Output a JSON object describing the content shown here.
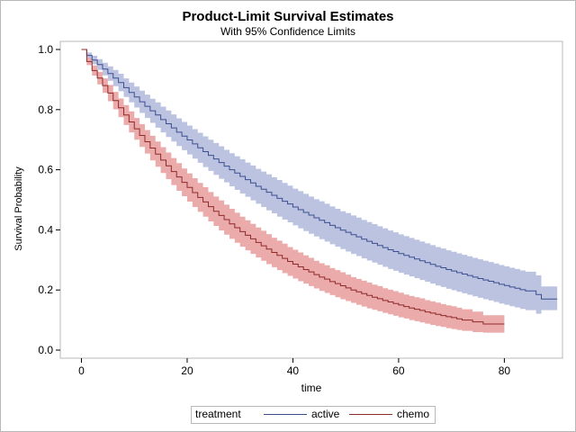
{
  "chart_data": {
    "type": "line",
    "title": "Product-Limit Survival Estimates",
    "subtitle": "With 95% Confidence Limits",
    "xlabel": "time",
    "ylabel": "Survival Probability",
    "xlim": [
      -4,
      91
    ],
    "ylim": [
      0,
      1.0
    ],
    "xticks": [
      0,
      20,
      40,
      60,
      80
    ],
    "yticks": [
      "0.0",
      "0.2",
      "0.4",
      "0.6",
      "0.8",
      "1.0"
    ],
    "legend_title": "treatment",
    "legend_position": "bottom",
    "series": [
      {
        "name": "active",
        "color": "#3d4e8f",
        "band_color": "#b7c0de",
        "x": [
          0,
          1,
          2,
          3,
          4,
          5,
          6,
          7,
          8,
          9,
          10,
          11,
          12,
          13,
          14,
          15,
          16,
          17,
          18,
          19,
          20,
          21,
          22,
          23,
          24,
          25,
          26,
          27,
          28,
          29,
          30,
          31,
          32,
          33,
          34,
          35,
          36,
          37,
          38,
          39,
          40,
          41,
          42,
          43,
          44,
          45,
          46,
          47,
          48,
          49,
          50,
          51,
          52,
          53,
          54,
          55,
          56,
          57,
          58,
          59,
          60,
          61,
          62,
          63,
          64,
          65,
          66,
          67,
          68,
          69,
          70,
          71,
          72,
          73,
          74,
          75,
          76,
          77,
          78,
          79,
          80,
          81,
          82,
          83,
          84,
          86,
          87,
          90
        ],
        "y": [
          1.0,
          0.98,
          0.965,
          0.95,
          0.935,
          0.92,
          0.905,
          0.89,
          0.873,
          0.857,
          0.842,
          0.826,
          0.811,
          0.796,
          0.782,
          0.767,
          0.753,
          0.739,
          0.725,
          0.712,
          0.699,
          0.686,
          0.673,
          0.66,
          0.648,
          0.636,
          0.624,
          0.612,
          0.6,
          0.589,
          0.578,
          0.567,
          0.556,
          0.545,
          0.535,
          0.525,
          0.515,
          0.505,
          0.495,
          0.486,
          0.476,
          0.467,
          0.458,
          0.449,
          0.44,
          0.432,
          0.424,
          0.415,
          0.407,
          0.399,
          0.392,
          0.384,
          0.377,
          0.369,
          0.362,
          0.355,
          0.348,
          0.341,
          0.334,
          0.328,
          0.321,
          0.315,
          0.309,
          0.303,
          0.297,
          0.291,
          0.285,
          0.279,
          0.274,
          0.268,
          0.263,
          0.258,
          0.253,
          0.248,
          0.243,
          0.238,
          0.233,
          0.229,
          0.224,
          0.219,
          0.215,
          0.21,
          0.206,
          0.201,
          0.197,
          0.185,
          0.17,
          0.17
        ],
        "lower": [
          1.0,
          0.97,
          0.951,
          0.932,
          0.914,
          0.896,
          0.878,
          0.861,
          0.842,
          0.824,
          0.807,
          0.789,
          0.772,
          0.756,
          0.74,
          0.724,
          0.709,
          0.694,
          0.679,
          0.665,
          0.651,
          0.637,
          0.623,
          0.609,
          0.596,
          0.583,
          0.57,
          0.558,
          0.545,
          0.533,
          0.521,
          0.51,
          0.498,
          0.487,
          0.476,
          0.465,
          0.455,
          0.444,
          0.434,
          0.425,
          0.415,
          0.405,
          0.396,
          0.387,
          0.378,
          0.369,
          0.361,
          0.352,
          0.344,
          0.336,
          0.328,
          0.32,
          0.313,
          0.305,
          0.298,
          0.291,
          0.284,
          0.277,
          0.27,
          0.264,
          0.257,
          0.251,
          0.245,
          0.239,
          0.233,
          0.227,
          0.221,
          0.215,
          0.21,
          0.204,
          0.199,
          0.194,
          0.189,
          0.184,
          0.179,
          0.174,
          0.169,
          0.165,
          0.16,
          0.155,
          0.151,
          0.146,
          0.142,
          0.137,
          0.133,
          0.121,
          0.133,
          0.133
        ],
        "upper": [
          1.0,
          0.99,
          0.979,
          0.968,
          0.956,
          0.944,
          0.932,
          0.919,
          0.904,
          0.89,
          0.877,
          0.863,
          0.85,
          0.836,
          0.824,
          0.81,
          0.797,
          0.784,
          0.771,
          0.759,
          0.747,
          0.735,
          0.723,
          0.711,
          0.7,
          0.689,
          0.678,
          0.666,
          0.655,
          0.645,
          0.635,
          0.624,
          0.614,
          0.603,
          0.594,
          0.585,
          0.575,
          0.566,
          0.556,
          0.547,
          0.537,
          0.529,
          0.52,
          0.511,
          0.502,
          0.495,
          0.487,
          0.478,
          0.47,
          0.462,
          0.456,
          0.448,
          0.441,
          0.433,
          0.426,
          0.419,
          0.412,
          0.405,
          0.398,
          0.392,
          0.385,
          0.379,
          0.373,
          0.367,
          0.361,
          0.355,
          0.349,
          0.343,
          0.338,
          0.332,
          0.327,
          0.322,
          0.317,
          0.312,
          0.307,
          0.302,
          0.297,
          0.293,
          0.288,
          0.283,
          0.279,
          0.274,
          0.27,
          0.265,
          0.261,
          0.249,
          0.212,
          0.212
        ]
      },
      {
        "name": "chemo",
        "color": "#8e2a2a",
        "band_color": "#eaa6a6",
        "x": [
          0,
          1,
          2,
          3,
          4,
          5,
          6,
          7,
          8,
          9,
          10,
          11,
          12,
          13,
          14,
          15,
          16,
          17,
          18,
          19,
          20,
          21,
          22,
          23,
          24,
          25,
          26,
          27,
          28,
          29,
          30,
          31,
          32,
          33,
          34,
          35,
          36,
          37,
          38,
          39,
          40,
          41,
          42,
          43,
          44,
          45,
          46,
          47,
          48,
          49,
          50,
          51,
          52,
          53,
          54,
          55,
          56,
          57,
          58,
          59,
          60,
          61,
          62,
          63,
          64,
          65,
          66,
          67,
          68,
          69,
          70,
          71,
          72,
          74,
          76,
          80
        ],
        "y": [
          1.0,
          0.96,
          0.93,
          0.905,
          0.88,
          0.855,
          0.83,
          0.806,
          0.782,
          0.759,
          0.736,
          0.714,
          0.693,
          0.672,
          0.652,
          0.632,
          0.613,
          0.594,
          0.576,
          0.558,
          0.541,
          0.524,
          0.508,
          0.493,
          0.477,
          0.462,
          0.448,
          0.434,
          0.42,
          0.407,
          0.394,
          0.382,
          0.37,
          0.358,
          0.347,
          0.336,
          0.325,
          0.315,
          0.305,
          0.295,
          0.286,
          0.277,
          0.268,
          0.26,
          0.251,
          0.243,
          0.236,
          0.228,
          0.221,
          0.214,
          0.207,
          0.2,
          0.194,
          0.188,
          0.182,
          0.176,
          0.171,
          0.165,
          0.16,
          0.155,
          0.15,
          0.145,
          0.14,
          0.136,
          0.132,
          0.127,
          0.123,
          0.119,
          0.115,
          0.111,
          0.108,
          0.104,
          0.1,
          0.094,
          0.087,
          0.087
        ],
        "lower": [
          1.0,
          0.948,
          0.913,
          0.884,
          0.856,
          0.828,
          0.801,
          0.775,
          0.749,
          0.724,
          0.7,
          0.676,
          0.654,
          0.631,
          0.61,
          0.589,
          0.569,
          0.549,
          0.53,
          0.512,
          0.494,
          0.476,
          0.46,
          0.444,
          0.428,
          0.413,
          0.398,
          0.384,
          0.37,
          0.357,
          0.344,
          0.332,
          0.32,
          0.308,
          0.297,
          0.286,
          0.276,
          0.266,
          0.256,
          0.247,
          0.238,
          0.229,
          0.221,
          0.213,
          0.205,
          0.197,
          0.19,
          0.183,
          0.176,
          0.169,
          0.163,
          0.157,
          0.151,
          0.145,
          0.139,
          0.134,
          0.129,
          0.124,
          0.119,
          0.114,
          0.109,
          0.105,
          0.1,
          0.096,
          0.092,
          0.088,
          0.084,
          0.08,
          0.077,
          0.073,
          0.07,
          0.067,
          0.064,
          0.06,
          0.058,
          0.058
        ],
        "upper": [
          1.0,
          0.972,
          0.947,
          0.926,
          0.904,
          0.882,
          0.859,
          0.837,
          0.815,
          0.794,
          0.772,
          0.752,
          0.732,
          0.713,
          0.694,
          0.675,
          0.657,
          0.639,
          0.622,
          0.604,
          0.588,
          0.572,
          0.556,
          0.542,
          0.526,
          0.511,
          0.498,
          0.484,
          0.47,
          0.457,
          0.444,
          0.432,
          0.42,
          0.408,
          0.397,
          0.386,
          0.374,
          0.364,
          0.354,
          0.343,
          0.334,
          0.325,
          0.315,
          0.307,
          0.297,
          0.289,
          0.282,
          0.273,
          0.266,
          0.259,
          0.251,
          0.243,
          0.237,
          0.231,
          0.225,
          0.218,
          0.213,
          0.206,
          0.201,
          0.196,
          0.191,
          0.185,
          0.18,
          0.176,
          0.172,
          0.166,
          0.162,
          0.158,
          0.153,
          0.149,
          0.146,
          0.141,
          0.136,
          0.128,
          0.116,
          0.116
        ]
      }
    ]
  }
}
